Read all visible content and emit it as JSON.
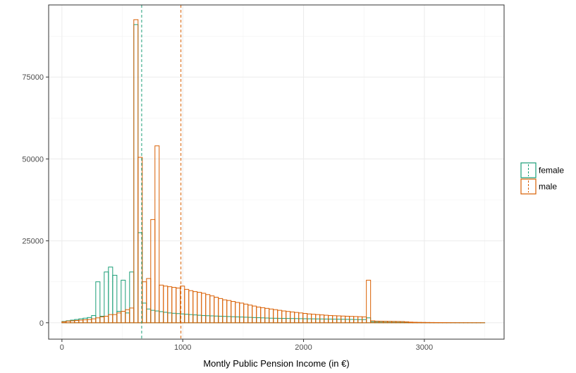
{
  "chart_data": {
    "type": "bar",
    "xlabel": "Montly Public Pension Income (in €)",
    "ylabel": "",
    "title": "",
    "xlim": [
      -110,
      3660
    ],
    "ylim": [
      -5000,
      97000
    ],
    "x_ticks": [
      0,
      1000,
      2000,
      3000
    ],
    "y_ticks": [
      0,
      25000,
      50000,
      75000
    ],
    "x_tick_labels": [
      "0",
      "1000",
      "2000",
      "3000"
    ],
    "y_tick_labels": [
      "0",
      "25000",
      "50000",
      "75000"
    ],
    "bin_width": 35,
    "grid": true,
    "legend_position": "right",
    "series": [
      {
        "name": "female",
        "color": "#1b9e77",
        "mean": 660,
        "bins": [
          [
            0,
            400
          ],
          [
            35,
            600
          ],
          [
            70,
            800
          ],
          [
            105,
            1000
          ],
          [
            140,
            1200
          ],
          [
            175,
            1400
          ],
          [
            210,
            1600
          ],
          [
            245,
            2200
          ],
          [
            280,
            12500
          ],
          [
            315,
            2000
          ],
          [
            350,
            15500
          ],
          [
            385,
            17000
          ],
          [
            420,
            14500
          ],
          [
            455,
            3500
          ],
          [
            490,
            13000
          ],
          [
            525,
            3000
          ],
          [
            560,
            15500
          ],
          [
            595,
            91000
          ],
          [
            630,
            27500
          ],
          [
            665,
            6000
          ],
          [
            700,
            4200
          ],
          [
            735,
            3800
          ],
          [
            770,
            3600
          ],
          [
            805,
            3400
          ],
          [
            840,
            3200
          ],
          [
            875,
            3000
          ],
          [
            910,
            2900
          ],
          [
            945,
            2800
          ],
          [
            980,
            2700
          ],
          [
            1015,
            2600
          ],
          [
            1050,
            2500
          ],
          [
            1085,
            2400
          ],
          [
            1120,
            2300
          ],
          [
            1155,
            2200
          ],
          [
            1190,
            2150
          ],
          [
            1225,
            2100
          ],
          [
            1260,
            2050
          ],
          [
            1295,
            2000
          ],
          [
            1330,
            1950
          ],
          [
            1365,
            1900
          ],
          [
            1400,
            1850
          ],
          [
            1435,
            1800
          ],
          [
            1470,
            1750
          ],
          [
            1505,
            1700
          ],
          [
            1540,
            1650
          ],
          [
            1575,
            1600
          ],
          [
            1610,
            1550
          ],
          [
            1645,
            1500
          ],
          [
            1680,
            1450
          ],
          [
            1715,
            1400
          ],
          [
            1750,
            1380
          ],
          [
            1785,
            1360
          ],
          [
            1820,
            1340
          ],
          [
            1855,
            1320
          ],
          [
            1890,
            1300
          ],
          [
            1925,
            1280
          ],
          [
            1960,
            1260
          ],
          [
            1995,
            1240
          ],
          [
            2030,
            1220
          ],
          [
            2065,
            1200
          ],
          [
            2100,
            1180
          ],
          [
            2135,
            1160
          ],
          [
            2170,
            1140
          ],
          [
            2205,
            1120
          ],
          [
            2240,
            1100
          ],
          [
            2275,
            1080
          ],
          [
            2310,
            1060
          ],
          [
            2345,
            1040
          ],
          [
            2380,
            1020
          ],
          [
            2415,
            1000
          ],
          [
            2450,
            990
          ],
          [
            2485,
            980
          ],
          [
            2520,
            1500
          ],
          [
            2555,
            300
          ],
          [
            2590,
            200
          ],
          [
            2625,
            180
          ],
          [
            2660,
            160
          ],
          [
            2695,
            150
          ],
          [
            2730,
            140
          ],
          [
            2765,
            130
          ],
          [
            2800,
            120
          ],
          [
            2835,
            110
          ],
          [
            2870,
            100
          ],
          [
            2905,
            90
          ],
          [
            2940,
            80
          ],
          [
            2975,
            70
          ],
          [
            3010,
            60
          ],
          [
            3045,
            50
          ],
          [
            3080,
            40
          ],
          [
            3115,
            35
          ],
          [
            3150,
            30
          ],
          [
            3185,
            25
          ],
          [
            3220,
            20
          ],
          [
            3255,
            18
          ],
          [
            3290,
            15
          ],
          [
            3325,
            12
          ],
          [
            3360,
            10
          ],
          [
            3395,
            8
          ],
          [
            3430,
            6
          ],
          [
            3465,
            5
          ]
        ]
      },
      {
        "name": "male",
        "color": "#d95f02",
        "mean": 985,
        "bins": [
          [
            0,
            300
          ],
          [
            35,
            500
          ],
          [
            70,
            600
          ],
          [
            105,
            700
          ],
          [
            140,
            800
          ],
          [
            175,
            900
          ],
          [
            210,
            1000
          ],
          [
            245,
            1200
          ],
          [
            280,
            1500
          ],
          [
            315,
            1800
          ],
          [
            350,
            2000
          ],
          [
            385,
            2500
          ],
          [
            420,
            2500
          ],
          [
            455,
            3000
          ],
          [
            490,
            3500
          ],
          [
            525,
            4000
          ],
          [
            560,
            4500
          ],
          [
            595,
            92500
          ],
          [
            630,
            50500
          ],
          [
            665,
            12500
          ],
          [
            700,
            13500
          ],
          [
            735,
            31500
          ],
          [
            770,
            54000
          ],
          [
            805,
            11500
          ],
          [
            840,
            11200
          ],
          [
            875,
            11000
          ],
          [
            910,
            10800
          ],
          [
            945,
            10600
          ],
          [
            980,
            11200
          ],
          [
            1015,
            10200
          ],
          [
            1050,
            9800
          ],
          [
            1085,
            9500
          ],
          [
            1120,
            9300
          ],
          [
            1155,
            9000
          ],
          [
            1190,
            8600
          ],
          [
            1225,
            8200
          ],
          [
            1260,
            7800
          ],
          [
            1295,
            7400
          ],
          [
            1330,
            7000
          ],
          [
            1365,
            6800
          ],
          [
            1400,
            6500
          ],
          [
            1435,
            6200
          ],
          [
            1470,
            6000
          ],
          [
            1505,
            5700
          ],
          [
            1540,
            5400
          ],
          [
            1575,
            5100
          ],
          [
            1610,
            4800
          ],
          [
            1645,
            4600
          ],
          [
            1680,
            4400
          ],
          [
            1715,
            4200
          ],
          [
            1750,
            4000
          ],
          [
            1785,
            3800
          ],
          [
            1820,
            3600
          ],
          [
            1855,
            3450
          ],
          [
            1890,
            3300
          ],
          [
            1925,
            3150
          ],
          [
            1960,
            3000
          ],
          [
            1995,
            2850
          ],
          [
            2030,
            2700
          ],
          [
            2065,
            2600
          ],
          [
            2100,
            2500
          ],
          [
            2135,
            2400
          ],
          [
            2170,
            2300
          ],
          [
            2205,
            2200
          ],
          [
            2240,
            2150
          ],
          [
            2275,
            2100
          ],
          [
            2310,
            2050
          ],
          [
            2345,
            2000
          ],
          [
            2380,
            1950
          ],
          [
            2415,
            1900
          ],
          [
            2450,
            1850
          ],
          [
            2485,
            1800
          ],
          [
            2520,
            13000
          ],
          [
            2555,
            600
          ],
          [
            2590,
            500
          ],
          [
            2625,
            480
          ],
          [
            2660,
            460
          ],
          [
            2695,
            440
          ],
          [
            2730,
            420
          ],
          [
            2765,
            400
          ],
          [
            2800,
            380
          ],
          [
            2835,
            300
          ],
          [
            2870,
            200
          ],
          [
            2905,
            150
          ],
          [
            2940,
            120
          ],
          [
            2975,
            100
          ],
          [
            3010,
            90
          ],
          [
            3045,
            80
          ],
          [
            3080,
            70
          ],
          [
            3115,
            60
          ],
          [
            3150,
            50
          ],
          [
            3185,
            40
          ],
          [
            3220,
            30
          ],
          [
            3255,
            25
          ],
          [
            3290,
            20
          ],
          [
            3325,
            15
          ],
          [
            3360,
            12
          ],
          [
            3395,
            10
          ],
          [
            3430,
            8
          ],
          [
            3465,
            6
          ]
        ]
      }
    ]
  }
}
